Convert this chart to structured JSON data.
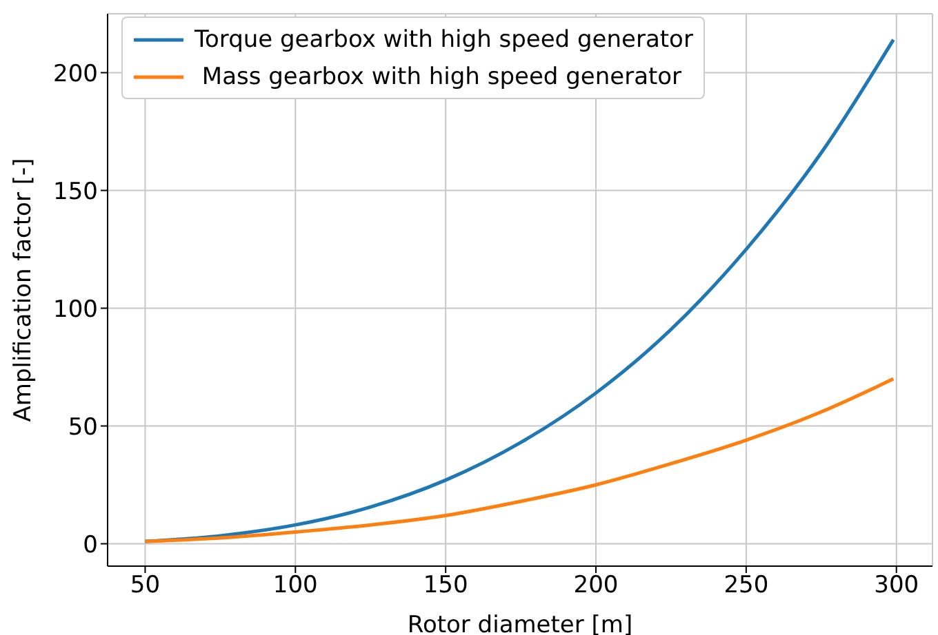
{
  "chart_data": {
    "type": "line",
    "xlabel": "Rotor diameter [m]",
    "ylabel": "Amplification factor [-]",
    "x": [
      50,
      75,
      100,
      125,
      150,
      175,
      200,
      225,
      250,
      275,
      299
    ],
    "series": [
      {
        "name": "Torque gearbox with high speed generator",
        "color": "#1f77b4",
        "values": [
          1,
          3.4,
          8,
          15.6,
          27,
          43,
          64,
          91,
          125,
          166,
          214
        ]
      },
      {
        "name": " Mass gearbox with high speed generator",
        "color": "#ff7f0e",
        "values": [
          1,
          2.5,
          5,
          8,
          12,
          18,
          25,
          34,
          44,
          56,
          70
        ]
      }
    ],
    "xlim": [
      37.5,
      312
    ],
    "xticks": [
      50,
      100,
      150,
      200,
      250,
      300
    ],
    "ylim": [
      -9.5,
      225
    ],
    "yticks": [
      0,
      50,
      100,
      150,
      200
    ],
    "grid": true,
    "legend": "top left",
    "marker": "none",
    "line_style": "solid"
  }
}
